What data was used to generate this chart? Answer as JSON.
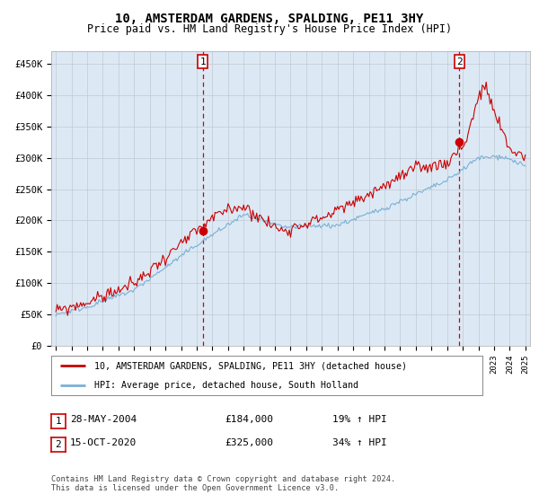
{
  "title": "10, AMSTERDAM GARDENS, SPALDING, PE11 3HY",
  "subtitle": "Price paid vs. HM Land Registry's House Price Index (HPI)",
  "plot_bg_color": "#dce9f5",
  "ylim": [
    0,
    470000
  ],
  "yticks": [
    0,
    50000,
    100000,
    150000,
    200000,
    250000,
    300000,
    350000,
    400000,
    450000
  ],
  "ytick_labels": [
    "£0",
    "£50K",
    "£100K",
    "£150K",
    "£200K",
    "£250K",
    "£300K",
    "£350K",
    "£400K",
    "£450K"
  ],
  "red_line_color": "#cc0000",
  "blue_line_color": "#7ab0d4",
  "marker1_x": 2004.38,
  "marker1_y": 184000,
  "marker2_x": 2020.79,
  "marker2_y": 325000,
  "legend_red_label": "10, AMSTERDAM GARDENS, SPALDING, PE11 3HY (detached house)",
  "legend_blue_label": "HPI: Average price, detached house, South Holland",
  "note1_date": "28-MAY-2004",
  "note1_price": "£184,000",
  "note1_hpi": "19% ↑ HPI",
  "note2_date": "15-OCT-2020",
  "note2_price": "£325,000",
  "note2_hpi": "34% ↑ HPI",
  "footer": "Contains HM Land Registry data © Crown copyright and database right 2024.\nThis data is licensed under the Open Government Licence v3.0.",
  "xlim_left": 1994.7,
  "xlim_right": 2025.3
}
